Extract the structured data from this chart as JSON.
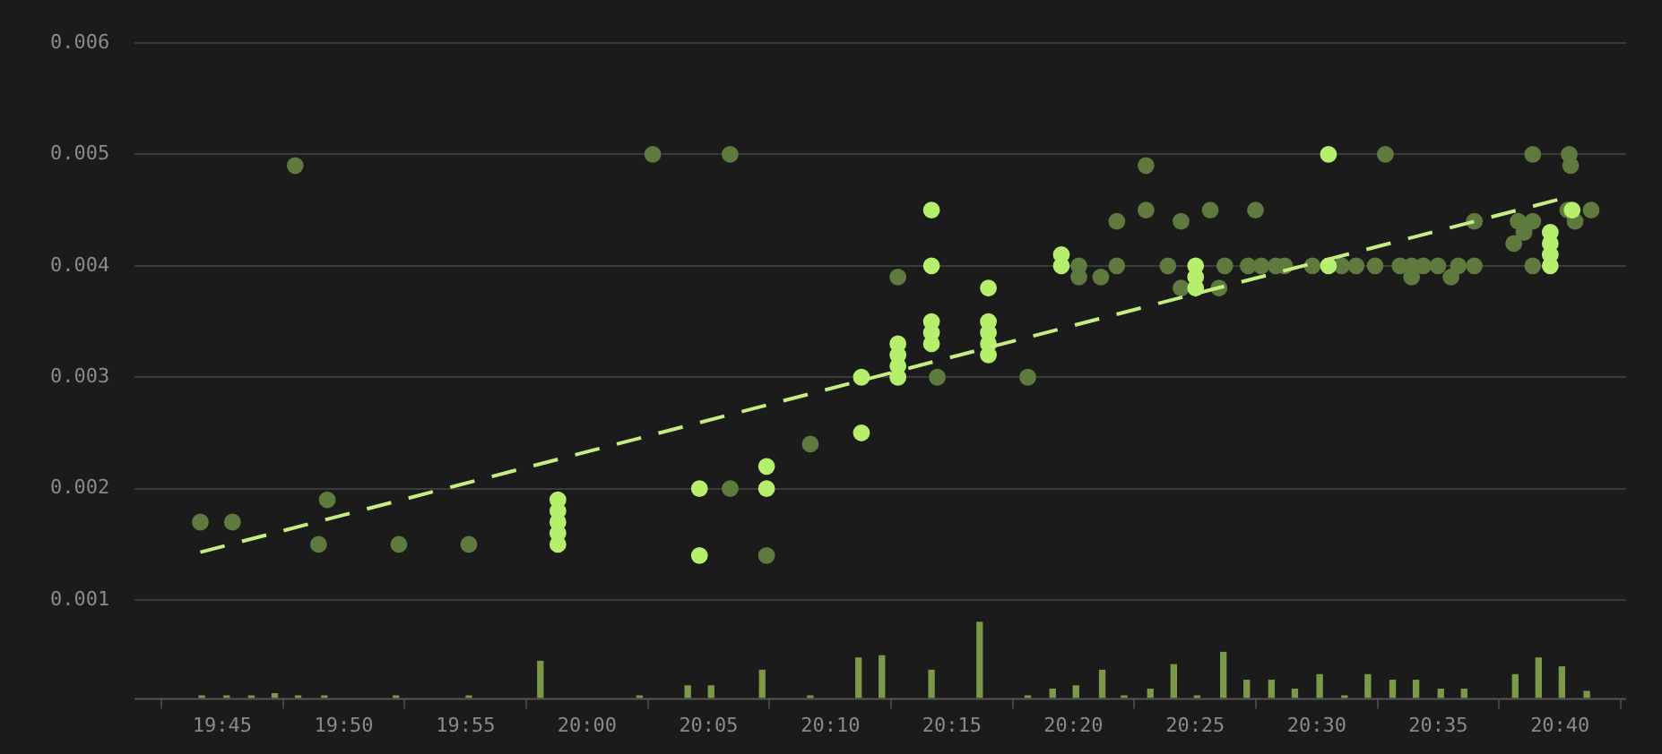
{
  "chart_data": {
    "type": "scatter",
    "marker": "circle",
    "grid": "y",
    "xlim": [
      19.69,
      20.712
    ],
    "ylim": [
      0.00012,
      0.006
    ],
    "xticks": [
      {
        "value": 19.75,
        "label": "19:45"
      },
      {
        "value": 19.8333,
        "label": "19:50"
      },
      {
        "value": 19.9167,
        "label": "19:55"
      },
      {
        "value": 20.0,
        "label": "20:00"
      },
      {
        "value": 20.0833,
        "label": "20:05"
      },
      {
        "value": 20.1667,
        "label": "20:10"
      },
      {
        "value": 20.25,
        "label": "20:15"
      },
      {
        "value": 20.3333,
        "label": "20:20"
      },
      {
        "value": 20.4167,
        "label": "20:25"
      },
      {
        "value": 20.5,
        "label": "20:30"
      },
      {
        "value": 20.5833,
        "label": "20:35"
      },
      {
        "value": 20.6667,
        "label": "20:40"
      }
    ],
    "yticks": [
      0.001,
      0.002,
      0.003,
      0.004,
      0.005,
      0.006
    ],
    "series": [
      {
        "type": "bar",
        "color": "#7a9a4a",
        "x": [
          19.736,
          19.753,
          19.77,
          19.786,
          19.802,
          19.82,
          19.869,
          19.919,
          19.968,
          20.036,
          20.069,
          20.085,
          20.12,
          20.153,
          20.186,
          20.202,
          20.236,
          20.269,
          20.302,
          20.319,
          20.335,
          20.353,
          20.368,
          20.386,
          20.402,
          20.418,
          20.436,
          20.452,
          20.469,
          20.485,
          20.502,
          20.519,
          20.535,
          20.552,
          20.568,
          20.585,
          20.601,
          20.636,
          20.652,
          20.668,
          20.685
        ],
        "values": [
          0.00014,
          0.00014,
          0.00014,
          0.00016,
          0.00014,
          0.00014,
          0.00014,
          0.00014,
          0.00045,
          0.00014,
          0.00023,
          0.00023,
          0.00037,
          0.00014,
          0.00048,
          0.0005,
          0.00037,
          0.0008,
          0.00014,
          0.0002,
          0.00023,
          0.00037,
          0.00014,
          0.0002,
          0.00042,
          0.00014,
          0.00053,
          0.00028,
          0.00028,
          0.0002,
          0.00033,
          0.00014,
          0.00033,
          0.00028,
          0.00028,
          0.0002,
          0.0002,
          0.00033,
          0.00048,
          0.0004,
          0.00018
        ]
      },
      {
        "color": "#5e7a3e",
        "x": [
          19.735,
          19.757,
          19.8,
          19.816,
          19.822,
          19.871,
          19.919,
          20.045,
          20.098,
          20.098,
          20.123,
          20.153,
          20.213,
          20.24,
          20.302,
          20.337,
          20.337,
          20.352,
          20.363,
          20.363,
          20.383,
          20.383,
          20.398,
          20.407,
          20.407,
          20.427,
          20.433,
          20.437,
          20.453,
          20.458,
          20.462,
          20.472,
          20.478,
          20.497,
          20.517,
          20.527,
          20.54,
          20.547,
          20.557,
          20.565,
          20.565,
          20.573,
          20.583,
          20.592,
          20.597,
          20.608,
          20.608,
          20.635,
          20.638,
          20.642,
          20.648,
          20.648,
          20.648,
          20.672,
          20.673,
          20.674,
          20.677,
          20.688
        ],
        "values": [
          0.0017,
          0.0017,
          0.0049,
          0.0015,
          0.0019,
          0.0015,
          0.0015,
          0.005,
          0.005,
          0.002,
          0.0014,
          0.0024,
          0.0039,
          0.003,
          0.003,
          0.004,
          0.0039,
          0.0039,
          0.0044,
          0.004,
          0.0049,
          0.0045,
          0.004,
          0.0044,
          0.0038,
          0.0045,
          0.0038,
          0.004,
          0.004,
          0.0045,
          0.004,
          0.004,
          0.004,
          0.004,
          0.004,
          0.004,
          0.004,
          0.005,
          0.004,
          0.0039,
          0.004,
          0.004,
          0.004,
          0.0039,
          0.004,
          0.004,
          0.0044,
          0.0042,
          0.0044,
          0.0043,
          0.005,
          0.0044,
          0.004,
          0.0045,
          0.005,
          0.0049,
          0.0044,
          0.0045
        ]
      },
      {
        "color": "#b6ef6c",
        "x": [
          19.98,
          19.98,
          19.98,
          19.98,
          19.98,
          20.077,
          20.077,
          20.123,
          20.123,
          20.188,
          20.188,
          20.213,
          20.213,
          20.213,
          20.213,
          20.236,
          20.236,
          20.236,
          20.236,
          20.236,
          20.275,
          20.275,
          20.275,
          20.275,
          20.275,
          20.325,
          20.325,
          20.417,
          20.417,
          20.417,
          20.508,
          20.508,
          20.66,
          20.66,
          20.66,
          20.66,
          20.675
        ],
        "values": [
          0.0019,
          0.0018,
          0.0017,
          0.0016,
          0.0015,
          0.002,
          0.0014,
          0.0022,
          0.002,
          0.003,
          0.0025,
          0.0033,
          0.0032,
          0.0031,
          0.003,
          0.0045,
          0.004,
          0.0035,
          0.0034,
          0.0033,
          0.0038,
          0.0035,
          0.0034,
          0.0033,
          0.0032,
          0.0041,
          0.004,
          0.004,
          0.0039,
          0.0038,
          0.005,
          0.004,
          0.0043,
          0.0042,
          0.0041,
          0.004,
          0.0045
        ]
      },
      {
        "type": "line",
        "color": "#c4ee82",
        "line_style": "dashed",
        "marker": "none",
        "x": [
          19.735,
          20.673
        ],
        "values": [
          0.00143,
          0.00462
        ]
      }
    ]
  }
}
